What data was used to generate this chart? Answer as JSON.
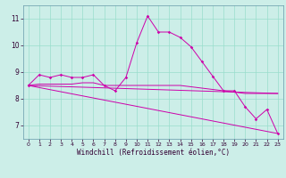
{
  "xlabel": "Windchill (Refroidissement éolien,°C)",
  "bg_color": "#cceee8",
  "line_color": "#cc00aa",
  "grid_color": "#99ddcc",
  "spine_color": "#6699aa",
  "tick_color": "#330033",
  "xlim": [
    -0.5,
    23.5
  ],
  "ylim": [
    6.5,
    11.5
  ],
  "yticks": [
    7,
    8,
    9,
    10,
    11
  ],
  "xticks": [
    0,
    1,
    2,
    3,
    4,
    5,
    6,
    7,
    8,
    9,
    10,
    11,
    12,
    13,
    14,
    15,
    16,
    17,
    18,
    19,
    20,
    21,
    22,
    23
  ],
  "line1_x": [
    0,
    1,
    2,
    3,
    4,
    5,
    6,
    7,
    8,
    9,
    10,
    11,
    12,
    13,
    14,
    15,
    16,
    17,
    18,
    19,
    20,
    21,
    22,
    23
  ],
  "line1_y": [
    8.5,
    8.9,
    8.8,
    8.9,
    8.8,
    8.8,
    8.9,
    8.5,
    8.3,
    8.8,
    10.1,
    11.1,
    10.5,
    10.5,
    10.3,
    9.95,
    9.4,
    8.85,
    8.3,
    8.3,
    7.7,
    7.25,
    7.6,
    6.7
  ],
  "line2_x": [
    0,
    1,
    2,
    3,
    4,
    5,
    6,
    7,
    8,
    9,
    10,
    11,
    12,
    13,
    14,
    15,
    16,
    17,
    18,
    19,
    20,
    21,
    22,
    23
  ],
  "line2_y": [
    8.5,
    8.55,
    8.55,
    8.55,
    8.55,
    8.6,
    8.6,
    8.5,
    8.5,
    8.5,
    8.5,
    8.5,
    8.5,
    8.5,
    8.5,
    8.45,
    8.4,
    8.35,
    8.3,
    8.25,
    8.2,
    8.2,
    8.2,
    8.2
  ],
  "line3_x": [
    0,
    23
  ],
  "line3_y": [
    8.5,
    8.2
  ],
  "line4_x": [
    0,
    23
  ],
  "line4_y": [
    8.5,
    6.7
  ],
  "lw": 0.7,
  "ms": 1.8
}
